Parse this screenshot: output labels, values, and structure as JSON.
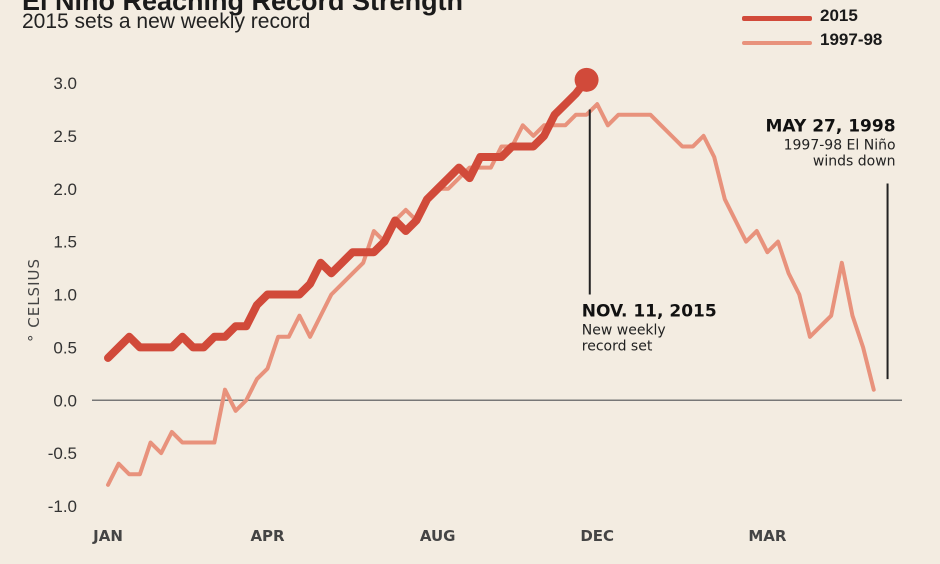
{
  "title": "El Niño Reaching Record Strength",
  "subtitle": "2015 sets a new weekly record",
  "legend": [
    {
      "label": "2015",
      "color": "#d14a3a"
    },
    {
      "label": "1997-98",
      "color": "#e8927c"
    }
  ],
  "chart_data": {
    "type": "line",
    "ylabel": "° CELSIUS",
    "ylim": [
      -1.0,
      3.0
    ],
    "yticks": [
      "3.0",
      "2.5",
      "2.0",
      "1.5",
      "1.0",
      "0.5",
      "0.0",
      "-0.5",
      "-1.0"
    ],
    "ytick_values": [
      3.0,
      2.5,
      2.0,
      1.5,
      1.0,
      0.5,
      0.0,
      -0.5,
      -1.0
    ],
    "xlim": [
      0,
      74
    ],
    "xticks": [
      {
        "label": "JAN",
        "week": 0
      },
      {
        "label": "APR",
        "week": 15
      },
      {
        "label": "AUG",
        "week": 31
      },
      {
        "label": "DEC",
        "week": 46
      },
      {
        "label": "MAR",
        "week": 62
      }
    ],
    "series": [
      {
        "name": "2015",
        "color": "#d14a3a",
        "values": [
          0.4,
          0.5,
          0.6,
          0.5,
          0.5,
          0.5,
          0.5,
          0.6,
          0.5,
          0.5,
          0.6,
          0.6,
          0.7,
          0.7,
          0.9,
          1.0,
          1.0,
          1.0,
          1.0,
          1.1,
          1.3,
          1.2,
          1.3,
          1.4,
          1.4,
          1.4,
          1.5,
          1.7,
          1.6,
          1.7,
          1.9,
          2.0,
          2.1,
          2.2,
          2.1,
          2.3,
          2.3,
          2.3,
          2.4,
          2.4,
          2.4,
          2.5,
          2.7,
          2.8,
          2.9,
          3.03
        ]
      },
      {
        "name": "1997-98",
        "color": "#e8927c",
        "values": [
          -0.8,
          -0.6,
          -0.7,
          -0.7,
          -0.4,
          -0.5,
          -0.3,
          -0.4,
          -0.4,
          -0.4,
          -0.4,
          0.1,
          -0.1,
          0.0,
          0.2,
          0.3,
          0.6,
          0.6,
          0.8,
          0.6,
          0.8,
          1.0,
          1.1,
          1.2,
          1.3,
          1.6,
          1.5,
          1.7,
          1.8,
          1.7,
          1.9,
          2.0,
          2.0,
          2.1,
          2.2,
          2.2,
          2.2,
          2.4,
          2.4,
          2.6,
          2.5,
          2.6,
          2.6,
          2.6,
          2.7,
          2.7,
          2.8,
          2.6,
          2.7,
          2.7,
          2.7,
          2.7,
          2.6,
          2.5,
          2.4,
          2.4,
          2.5,
          2.3,
          1.9,
          1.7,
          1.5,
          1.6,
          1.4,
          1.5,
          1.2,
          1.0,
          0.6,
          0.7,
          0.8,
          1.3,
          0.8,
          0.5,
          0.1
        ]
      }
    ],
    "end_marker": {
      "series": "2015",
      "week": 45,
      "value": 3.03
    },
    "annotations": [
      {
        "week": 45.3,
        "value_top": 2.75,
        "value_bottom": 1.0,
        "title": "NOV. 11, 2015",
        "lines": [
          "New weekly",
          "record set"
        ]
      },
      {
        "week": 73.3,
        "value_top": 2.05,
        "value_bottom": 0.2,
        "title": "MAY 27, 1998",
        "lines": [
          "1997-98 El Niño",
          "winds down"
        ]
      }
    ]
  }
}
